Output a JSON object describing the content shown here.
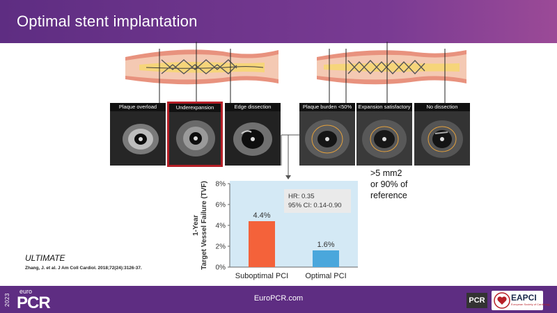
{
  "slide": {
    "title": "Optimal stent implantation",
    "side_note": [
      ">5 mm2",
      "or 90% of",
      "reference"
    ],
    "study_name": "ULTIMATE",
    "citation": "Zhang, J. et al. J Am Coll Cardiol. 2018;72(24):3126-37."
  },
  "ivus_panels": [
    {
      "label": "Plaque overload",
      "highlight": false
    },
    {
      "label": "Underexpansion",
      "highlight": true
    },
    {
      "label": "Edge dissection",
      "highlight": false
    },
    {
      "label": "Plaque burden <50%",
      "highlight": false
    },
    {
      "label": "Expansion satisfactory",
      "highlight": false
    },
    {
      "label": "No  dissection",
      "highlight": false
    }
  ],
  "stats": {
    "hr": "HR: 0.35",
    "ci": "95% CI: 0.14-0.90"
  },
  "chart_data": {
    "type": "bar",
    "categories": [
      "Suboptimal PCI",
      "Optimal PCI"
    ],
    "values": [
      4.4,
      1.6
    ],
    "data_labels": [
      "4.4%",
      "1.6%"
    ],
    "colors": [
      "#f4623a",
      "#4aa7dc"
    ],
    "ylabel": "1-Year\nTarget Vessel Failure (TVF)",
    "ylim": [
      0,
      8
    ],
    "yticks": [
      0,
      2,
      4,
      6,
      8
    ],
    "ytick_labels": [
      "0%",
      "2%",
      "4%",
      "6%",
      "8%"
    ],
    "grid": false
  },
  "footer": {
    "url": "EuroPCR.com",
    "logo_year": "2023",
    "logo_euro": "euro",
    "logo_pcr": "PCR",
    "badge_pcr": "PCR",
    "eapci": "EAPCI",
    "eapci_sub": "European Society of Cardiology"
  }
}
